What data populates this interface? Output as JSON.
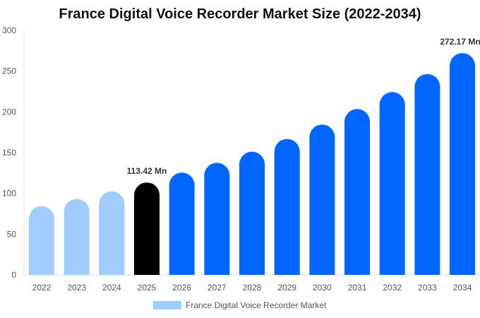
{
  "chart_data": {
    "type": "bar",
    "title": "France Digital Voice Recorder Market Size (2022-2034)",
    "categories": [
      "2022",
      "2023",
      "2024",
      "2025",
      "2026",
      "2027",
      "2028",
      "2029",
      "2030",
      "2031",
      "2032",
      "2033",
      "2034"
    ],
    "series": [
      {
        "name": "France Digital Voice Recorder Market",
        "values": [
          84.3,
          93.2,
          102.5,
          113.42,
          125.5,
          137.5,
          151.2,
          166.8,
          184.5,
          203.5,
          224.3,
          246.5,
          272.17
        ]
      }
    ],
    "annotations": [
      {
        "category": "2025",
        "text": "113.42 Mn"
      },
      {
        "category": "2034",
        "text": "272.17 Mn"
      }
    ],
    "ylim": [
      0,
      300
    ],
    "yticks": [
      0,
      50,
      100,
      150,
      200,
      250,
      300
    ],
    "grid": false,
    "legend": "bottom",
    "colors": {
      "historical": "#a0cdfd",
      "current": "#000000",
      "forecast": "#0066ff"
    }
  }
}
